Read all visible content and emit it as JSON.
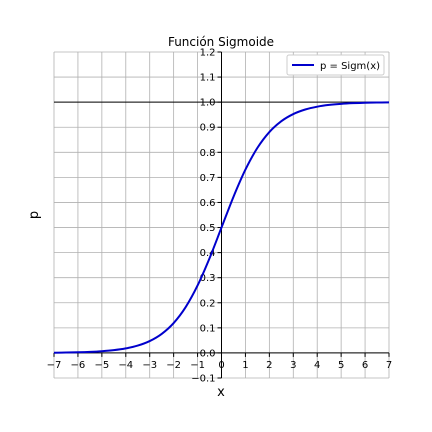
{
  "chart_data": {
    "type": "line",
    "title": "Función Sigmoide",
    "xlabel": "x",
    "ylabel": "p",
    "xlim": [
      -7,
      7
    ],
    "ylim": [
      -0.1,
      1.2
    ],
    "xticks": [
      "−7",
      "−6",
      "−5",
      "−4",
      "−3",
      "−2",
      "−1",
      "0",
      "1",
      "2",
      "3",
      "4",
      "5",
      "6",
      "7"
    ],
    "xtick_values": [
      -7,
      -6,
      -5,
      -4,
      -3,
      -2,
      -1,
      0,
      1,
      2,
      3,
      4,
      5,
      6,
      7
    ],
    "yticks": [
      "−0.1",
      "0.0",
      "0.1",
      "0.2",
      "0.3",
      "0.4",
      "0.5",
      "0.6",
      "0.7",
      "0.8",
      "0.9",
      "1.0",
      "1.1",
      "1.2"
    ],
    "ytick_values": [
      -0.1,
      0.0,
      0.1,
      0.2,
      0.3,
      0.4,
      0.5,
      0.6,
      0.7,
      0.8,
      0.9,
      1.0,
      1.1,
      1.2
    ],
    "grid": true,
    "legend_position": "top-right",
    "reference_line": {
      "y": 1.0,
      "color": "#000000"
    },
    "series": [
      {
        "name": "p = Sigm(x)",
        "color": "#0000cc",
        "x": [
          -7,
          -6.5,
          -6,
          -5.5,
          -5,
          -4.5,
          -4,
          -3.5,
          -3,
          -2.5,
          -2,
          -1.5,
          -1,
          -0.5,
          0,
          0.5,
          1,
          1.5,
          2,
          2.5,
          3,
          3.5,
          4,
          4.5,
          5,
          5.5,
          6,
          6.5,
          7
        ],
        "y": [
          0.0009,
          0.0015,
          0.0025,
          0.0041,
          0.0067,
          0.011,
          0.018,
          0.0293,
          0.0474,
          0.0759,
          0.1192,
          0.1824,
          0.2689,
          0.3775,
          0.5,
          0.6225,
          0.7311,
          0.8176,
          0.8808,
          0.9241,
          0.9526,
          0.9707,
          0.982,
          0.989,
          0.9933,
          0.9959,
          0.9975,
          0.9985,
          0.9991
        ]
      }
    ]
  }
}
